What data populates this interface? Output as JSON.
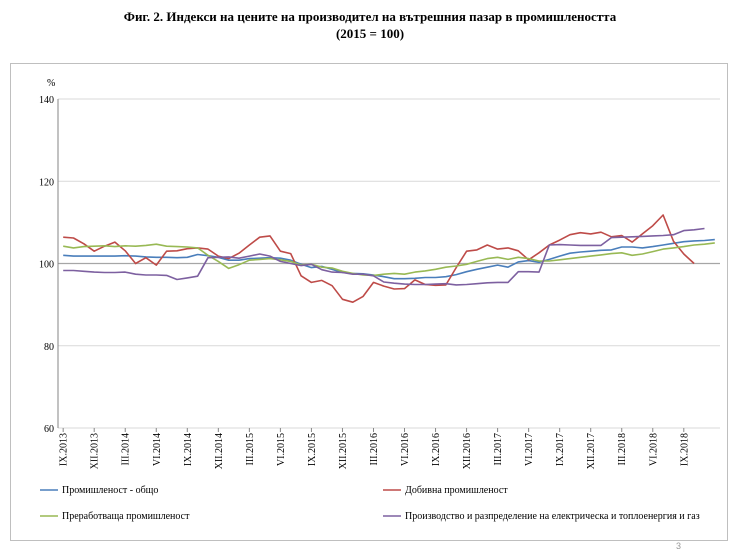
{
  "title_line1": "Фиг. 2. Индекси на цените на производител на вътрешния пазар в промишлеността",
  "title_line2": "(2015 = 100)",
  "page_number": "3",
  "chart_data": {
    "type": "line",
    "ylabel": "%",
    "ylim": [
      60,
      140
    ],
    "yticks": [
      60,
      80,
      100,
      120,
      140
    ],
    "grid": true,
    "legend_position": "bottom",
    "x_tick_labels": [
      "IX.2013",
      "XII.2013",
      "III.2014",
      "VI.2014",
      "IX.2014",
      "XII.2014",
      "III.2015",
      "VI.2015",
      "IX.2015",
      "XII.2015",
      "III.2016",
      "VI.2016",
      "IX.2016",
      "XII.2016",
      "III.2017",
      "VI.2017",
      "IX.2017",
      "XII.2017",
      "III.2018",
      "VI.2018",
      "IX.2018"
    ],
    "x_tick_every": 3,
    "series": [
      {
        "name": "Промишленост - общо",
        "color": "#4a7ebb",
        "values": [
          102.0,
          101.8,
          101.8,
          101.8,
          101.8,
          101.8,
          101.9,
          101.8,
          101.6,
          101.5,
          101.5,
          101.4,
          101.5,
          102.2,
          101.9,
          101.5,
          100.8,
          100.8,
          101.2,
          101.3,
          101.4,
          101.3,
          100.8,
          99.8,
          99.0,
          99.3,
          98.6,
          97.8,
          97.6,
          97.5,
          97.2,
          96.8,
          96.3,
          96.3,
          96.4,
          96.6,
          96.6,
          96.8,
          97.3,
          98.0,
          98.6,
          99.1,
          99.6,
          99.1,
          100.4,
          100.7,
          100.3,
          101.0,
          101.8,
          102.5,
          102.8,
          103.0,
          103.2,
          103.3,
          104.0,
          104.0,
          103.8,
          104.1,
          104.5,
          104.9,
          105.3,
          105.5,
          105.6,
          105.8
        ]
      },
      {
        "name": "Добивна промишленост",
        "color": "#be4b48",
        "values": [
          106.4,
          106.2,
          104.8,
          103.0,
          104.2,
          105.2,
          103.1,
          100.0,
          101.4,
          99.6,
          103.0,
          103.1,
          103.6,
          103.8,
          103.5,
          101.8,
          101.2,
          102.5,
          104.5,
          106.4,
          106.7,
          103.0,
          102.4,
          97.0,
          95.4,
          95.9,
          94.6,
          91.3,
          90.6,
          92.0,
          95.4,
          94.5,
          93.8,
          93.9,
          96.0,
          94.9,
          94.7,
          94.8,
          99.0,
          103.0,
          103.3,
          104.5,
          103.5,
          103.8,
          103.1,
          100.9,
          102.6,
          104.5,
          105.7,
          107.0,
          107.5,
          107.2,
          107.6,
          106.5,
          106.8,
          105.2,
          107.2,
          109.2,
          111.8,
          105.4,
          102.3,
          100.0
        ]
      },
      {
        "name": "Преработваща промишленост",
        "color": "#98b954",
        "values": [
          104.2,
          103.8,
          104.1,
          104.2,
          104.3,
          104.1,
          104.3,
          104.2,
          104.4,
          104.7,
          104.2,
          104.1,
          104.0,
          103.8,
          102.0,
          100.5,
          98.8,
          99.7,
          100.8,
          101.0,
          101.2,
          100.9,
          100.5,
          99.6,
          99.8,
          99.1,
          98.9,
          98.1,
          97.6,
          97.2,
          97.1,
          97.4,
          97.6,
          97.4,
          97.9,
          98.2,
          98.6,
          99.1,
          99.4,
          99.8,
          100.5,
          101.2,
          101.5,
          101.0,
          101.5,
          101.2,
          100.6,
          100.6,
          100.9,
          101.2,
          101.5,
          101.8,
          102.1,
          102.4,
          102.6,
          102.0,
          102.3,
          102.9,
          103.5,
          103.8,
          104.1,
          104.5,
          104.7,
          105.0
        ]
      },
      {
        "name": "Производство и разпределение на електрическа и топлоенергия и газ",
        "color": "#7d60a0",
        "values": [
          98.3,
          98.3,
          98.1,
          97.9,
          97.8,
          97.8,
          97.9,
          97.4,
          97.2,
          97.2,
          97.1,
          96.1,
          96.5,
          96.9,
          101.4,
          101.5,
          101.6,
          101.3,
          101.8,
          102.3,
          101.8,
          100.5,
          100.0,
          99.5,
          99.8,
          98.5,
          97.9,
          97.8,
          97.4,
          97.4,
          97.0,
          95.5,
          95.2,
          95.0,
          94.9,
          94.9,
          95.0,
          95.1,
          94.8,
          94.9,
          95.1,
          95.3,
          95.4,
          95.4,
          98.0,
          98.0,
          97.9,
          104.5,
          104.6,
          104.5,
          104.4,
          104.4,
          104.4,
          106.3,
          106.4,
          106.5,
          106.6,
          106.7,
          106.8,
          107.0,
          108.0,
          108.2,
          108.5
        ]
      }
    ]
  }
}
